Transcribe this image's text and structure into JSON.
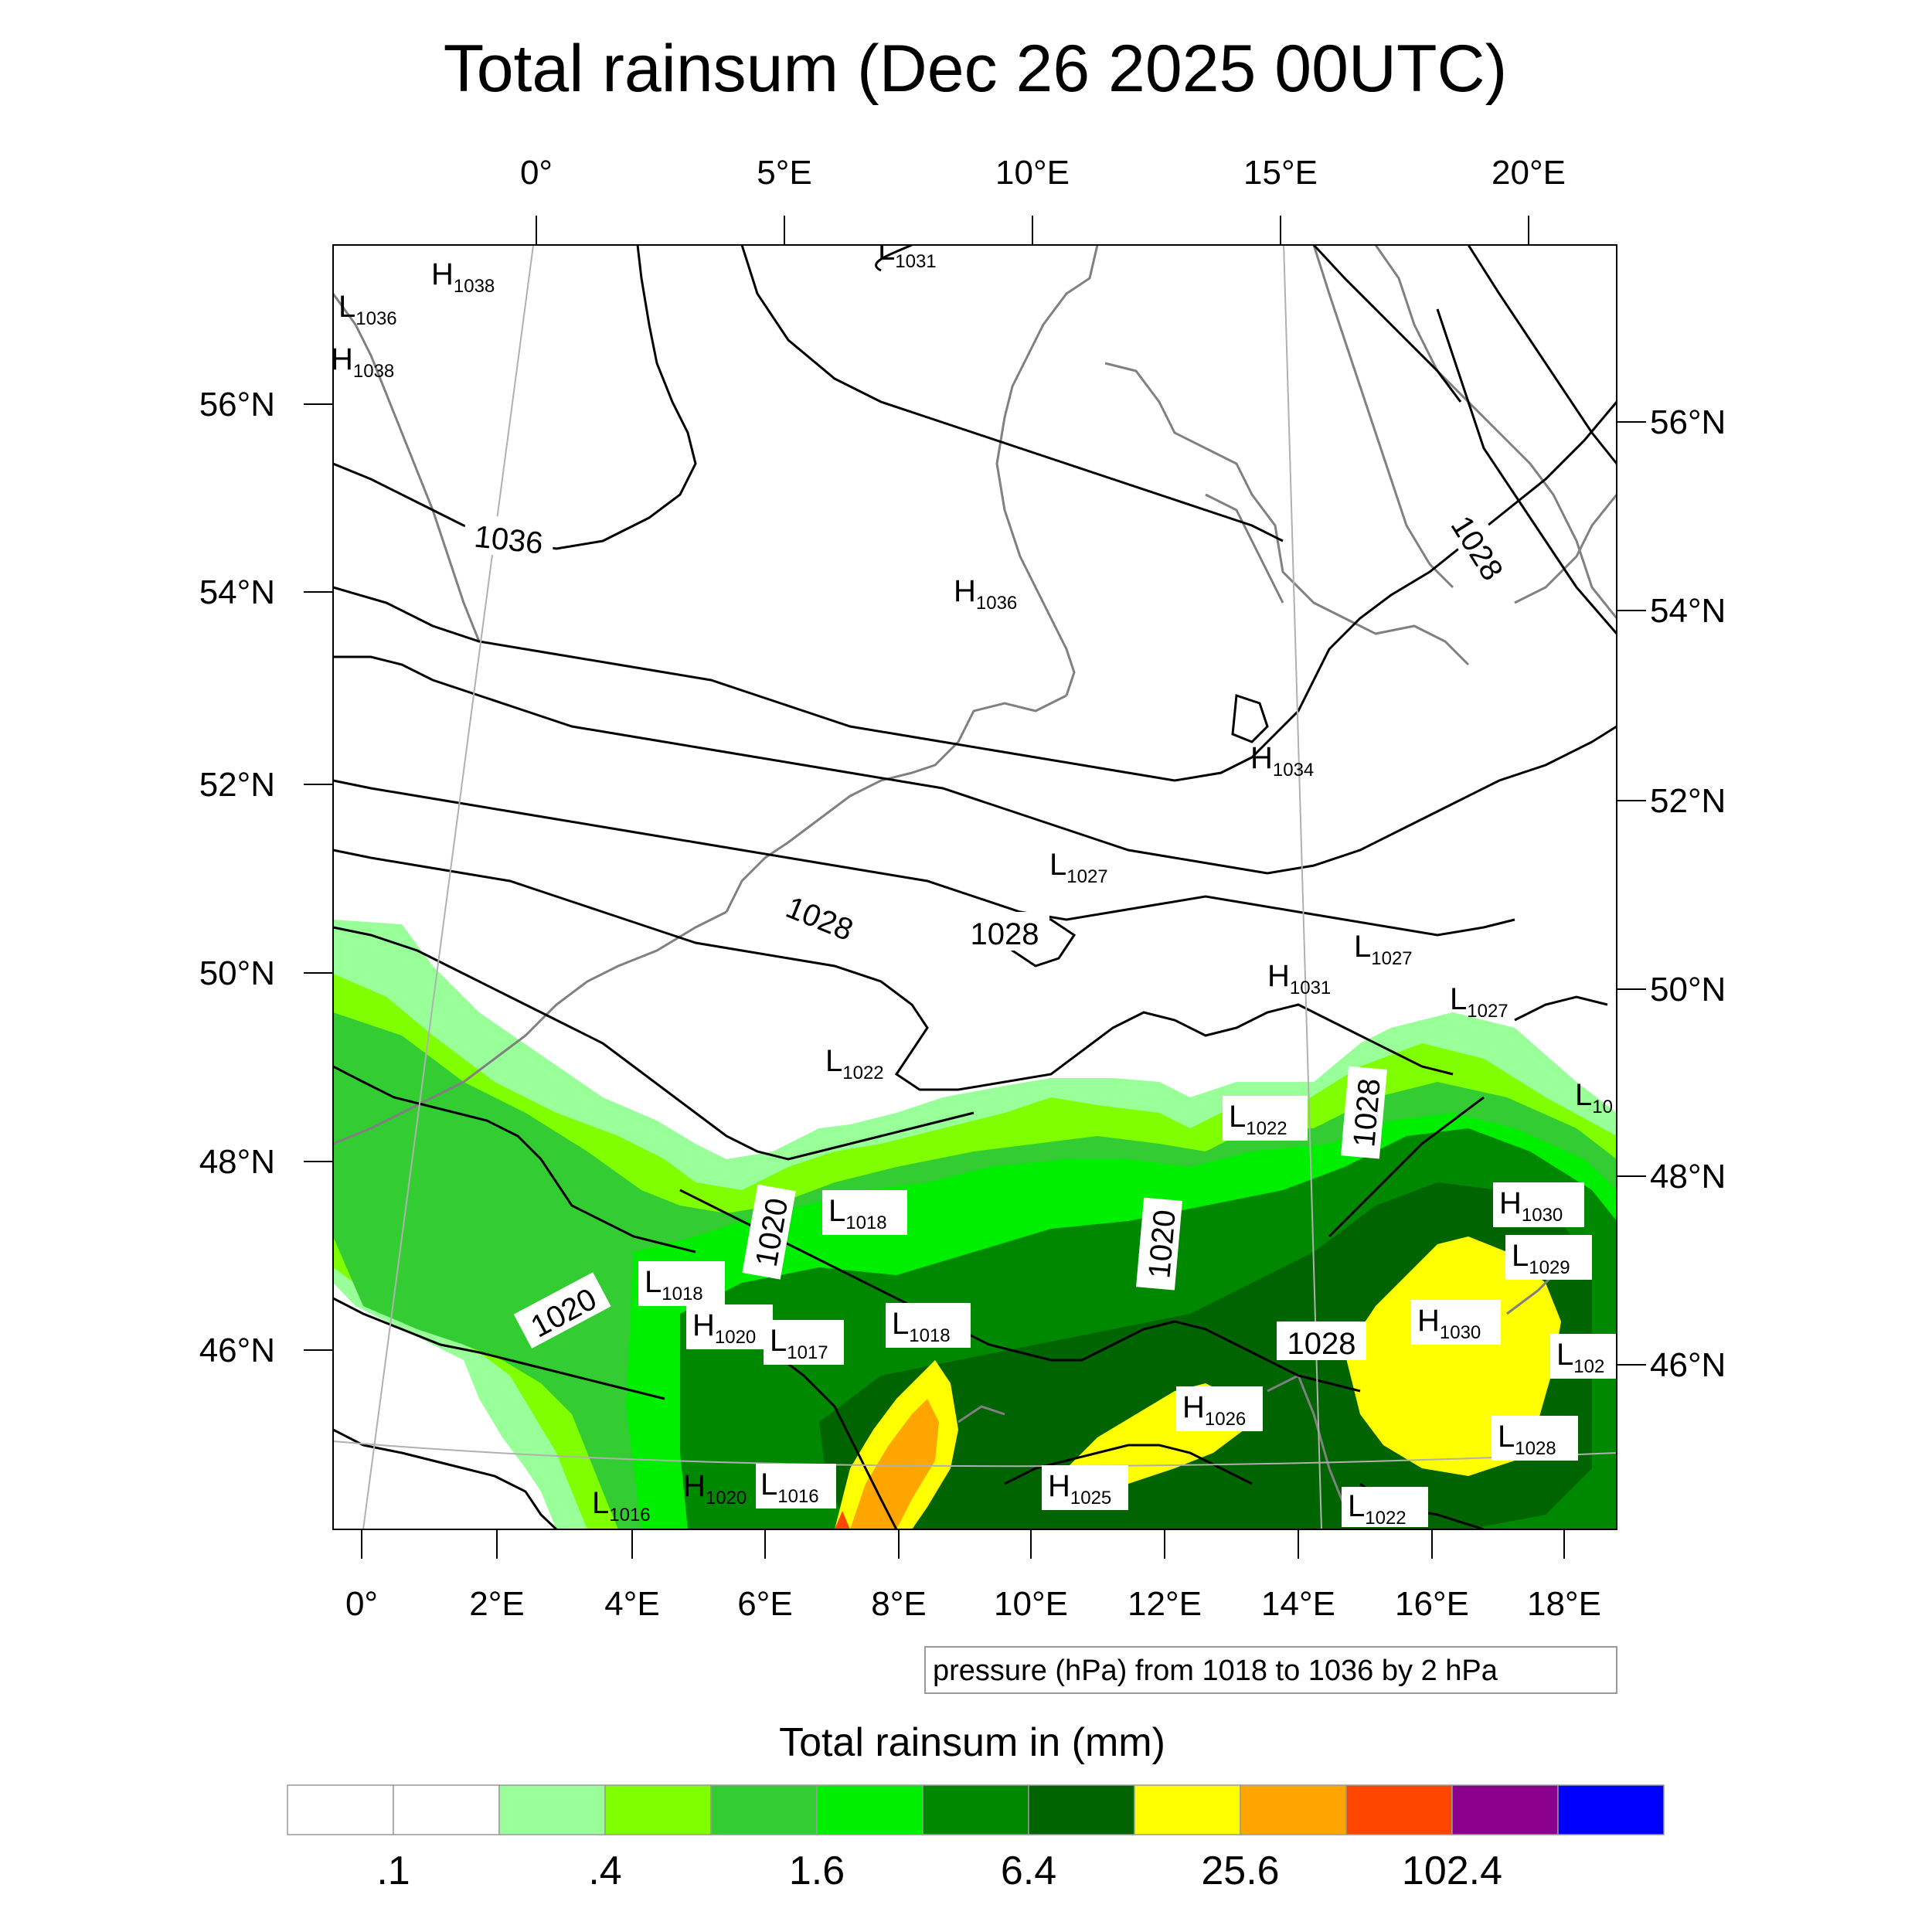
{
  "title": "Total rainsum (Dec 26 2025 00UTC)",
  "top_axis_labels": [
    "0°",
    "5°E",
    "10°E",
    "15°E",
    "20°E"
  ],
  "bottom_axis_labels": [
    "0°",
    "2°E",
    "4°E",
    "6°E",
    "8°E",
    "10°E",
    "12°E",
    "14°E",
    "16°E",
    "18°E"
  ],
  "left_axis_labels": [
    "56°N",
    "54°N",
    "52°N",
    "50°N",
    "48°N",
    "46°N"
  ],
  "right_axis_labels": [
    "56°N",
    "54°N",
    "52°N",
    "50°N",
    "48°N",
    "46°N"
  ],
  "pressure_info": "pressure (hPa) from 1018 to 1036 by 2 hPa",
  "colorbar": {
    "title": "Total rainsum in (mm)",
    "colors": [
      "#ffffff",
      "#ffffff",
      "#99ff99",
      "#80ff00",
      "#33cc33",
      "#00ee00",
      "#008800",
      "#006400",
      "#ffff00",
      "#ffa500",
      "#ff4500",
      "#8b008b",
      "#0000ff"
    ],
    "tick_labels": [
      ".1",
      ".4",
      "1.6",
      "6.4",
      "25.6",
      "102.4"
    ]
  },
  "contour_labels": [
    {
      "text": "1036"
    },
    {
      "text": "1028"
    },
    {
      "text": "1028"
    },
    {
      "text": "1028"
    },
    {
      "text": "1020"
    },
    {
      "text": "1020"
    },
    {
      "text": "1020"
    },
    {
      "text": "1028"
    },
    {
      "text": "1028"
    }
  ],
  "pressure_centers": [
    {
      "t": "H",
      "v": "1038"
    },
    {
      "t": "L",
      "v": "1036"
    },
    {
      "t": "H",
      "v": "1038"
    },
    {
      "t": "L",
      "v": "1031"
    },
    {
      "t": "H",
      "v": "1036"
    },
    {
      "t": "H",
      "v": "1034"
    },
    {
      "t": "L",
      "v": "1027"
    },
    {
      "t": "L",
      "v": "1027"
    },
    {
      "t": "H",
      "v": "1031"
    },
    {
      "t": "L",
      "v": "1027"
    },
    {
      "t": "L",
      "v": "1022"
    },
    {
      "t": "L",
      "v": "10"
    },
    {
      "t": "L",
      "v": "1022"
    },
    {
      "t": "L",
      "v": "1018"
    },
    {
      "t": "H",
      "v": "1030"
    },
    {
      "t": "L",
      "v": "1029"
    },
    {
      "t": "L",
      "v": "1018"
    },
    {
      "t": "H",
      "v": "1020"
    },
    {
      "t": "L",
      "v": "1017"
    },
    {
      "t": "L",
      "v": "1018"
    },
    {
      "t": "H",
      "v": "1030"
    },
    {
      "t": "L",
      "v": "102"
    },
    {
      "t": "H",
      "v": "1026"
    },
    {
      "t": "L",
      "v": "1028"
    },
    {
      "t": "H",
      "v": "1025"
    },
    {
      "t": "L",
      "v": "1016"
    },
    {
      "t": "H",
      "v": "1020"
    },
    {
      "t": "L",
      "v": "1016"
    },
    {
      "t": "L",
      "v": "1022"
    }
  ]
}
